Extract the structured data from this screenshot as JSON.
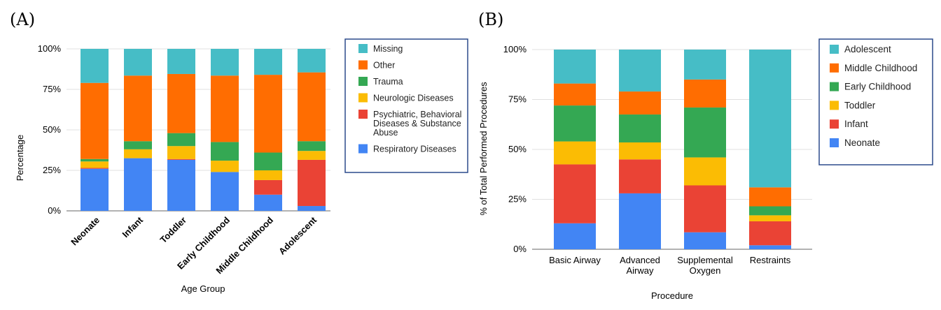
{
  "chart_data": [
    {
      "panel_label": "(A)",
      "type": "bar",
      "stacked": true,
      "xlabel": "Age Group",
      "ylabel": "Percentage",
      "ylim": [
        0,
        100
      ],
      "yticks": [
        "0%",
        "25%",
        "50%",
        "75%",
        "100%"
      ],
      "categories": [
        "Neonate",
        "Infant",
        "Toddler",
        "Early Childhood",
        "Middle Childhood",
        "Adolescent"
      ],
      "legend_position": "right",
      "series": [
        {
          "name": "Respiratory Diseases",
          "color": "#4285F4",
          "values": [
            26,
            32.5,
            31.5,
            24,
            10,
            3
          ]
        },
        {
          "name": "Psychiatric, Behavioral Diseases & Substance Abuse",
          "color": "#EA4335",
          "values": [
            0.5,
            0,
            0.5,
            0,
            9,
            28.5
          ]
        },
        {
          "name": "Neurologic Diseases",
          "color": "#FBBC04",
          "values": [
            4,
            5.5,
            8,
            7,
            6,
            5.5
          ]
        },
        {
          "name": "Trauma",
          "color": "#34A853",
          "values": [
            1.5,
            5,
            8,
            11.5,
            11,
            6
          ]
        },
        {
          "name": "Other",
          "color": "#FF6D01",
          "values": [
            47,
            40.5,
            36.5,
            41,
            48,
            42.5
          ]
        },
        {
          "name": "Missing",
          "color": "#46BDC6",
          "values": [
            21,
            16.5,
            15.5,
            16.5,
            16,
            14.5
          ]
        }
      ],
      "legend_order": [
        "Missing",
        "Other",
        "Trauma",
        "Neurologic Diseases",
        "Psychiatric, Behavioral Diseases & Substance Abuse",
        "Respiratory Diseases"
      ]
    },
    {
      "panel_label": "(B)",
      "type": "bar",
      "stacked": true,
      "xlabel": "Procedure",
      "ylabel": "% of Total Performed Procedures",
      "ylim": [
        0,
        100
      ],
      "yticks": [
        "0%",
        "25%",
        "50%",
        "75%",
        "100%"
      ],
      "categories": [
        "Basic Airway",
        "Advanced Airway",
        "Supplemental Oxygen",
        "Restraints"
      ],
      "legend_position": "right",
      "series": [
        {
          "name": "Neonate",
          "color": "#4285F4",
          "values": [
            13,
            28,
            8.5,
            2
          ]
        },
        {
          "name": "Infant",
          "color": "#EA4335",
          "values": [
            29.5,
            17,
            23.5,
            12
          ]
        },
        {
          "name": "Toddler",
          "color": "#FBBC04",
          "values": [
            11.5,
            8.5,
            14,
            3
          ]
        },
        {
          "name": "Early Childhood",
          "color": "#34A853",
          "values": [
            18,
            14,
            25,
            4.5
          ]
        },
        {
          "name": "Middle Childhood",
          "color": "#FF6D01",
          "values": [
            11,
            11.5,
            14,
            9.5
          ]
        },
        {
          "name": "Adolescent",
          "color": "#46BDC6",
          "values": [
            17,
            21,
            15,
            69
          ]
        }
      ],
      "legend_order": [
        "Adolescent",
        "Middle Childhood",
        "Early Childhood",
        "Toddler",
        "Infant",
        "Neonate"
      ]
    }
  ]
}
